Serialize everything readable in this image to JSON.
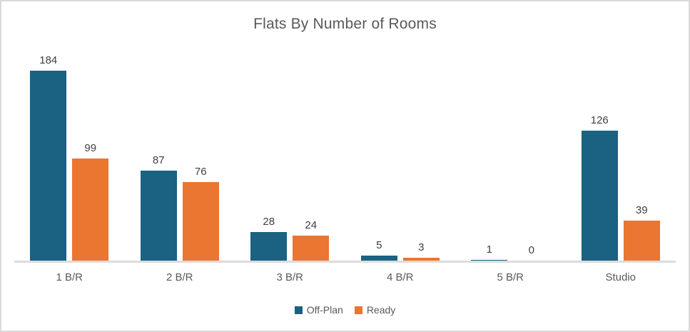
{
  "window": {
    "background": "#ffffff",
    "border_color": "#d9d9d9"
  },
  "chart_data": {
    "type": "bar",
    "title": "Flats By Number of Rooms",
    "categories": [
      "1 B/R",
      "2 B/R",
      "3 B/R",
      "4 B/R",
      "5 B/R",
      "Studio"
    ],
    "series": [
      {
        "name": "Off-Plan",
        "color": "#1a6182",
        "values": [
          184,
          87,
          28,
          5,
          1,
          126
        ]
      },
      {
        "name": "Ready",
        "color": "#ea7631",
        "values": [
          99,
          76,
          24,
          3,
          0,
          39
        ]
      }
    ],
    "xlabel": "",
    "ylabel": "",
    "ylim": [
      0,
      184
    ],
    "grid": false,
    "y_axis_visible": false,
    "data_labels": true,
    "legend_position": "bottom",
    "axis_line_color": "#dcdcdc",
    "title_color": "#595959",
    "data_label_color": "#404040",
    "tick_label_color": "#595959"
  }
}
